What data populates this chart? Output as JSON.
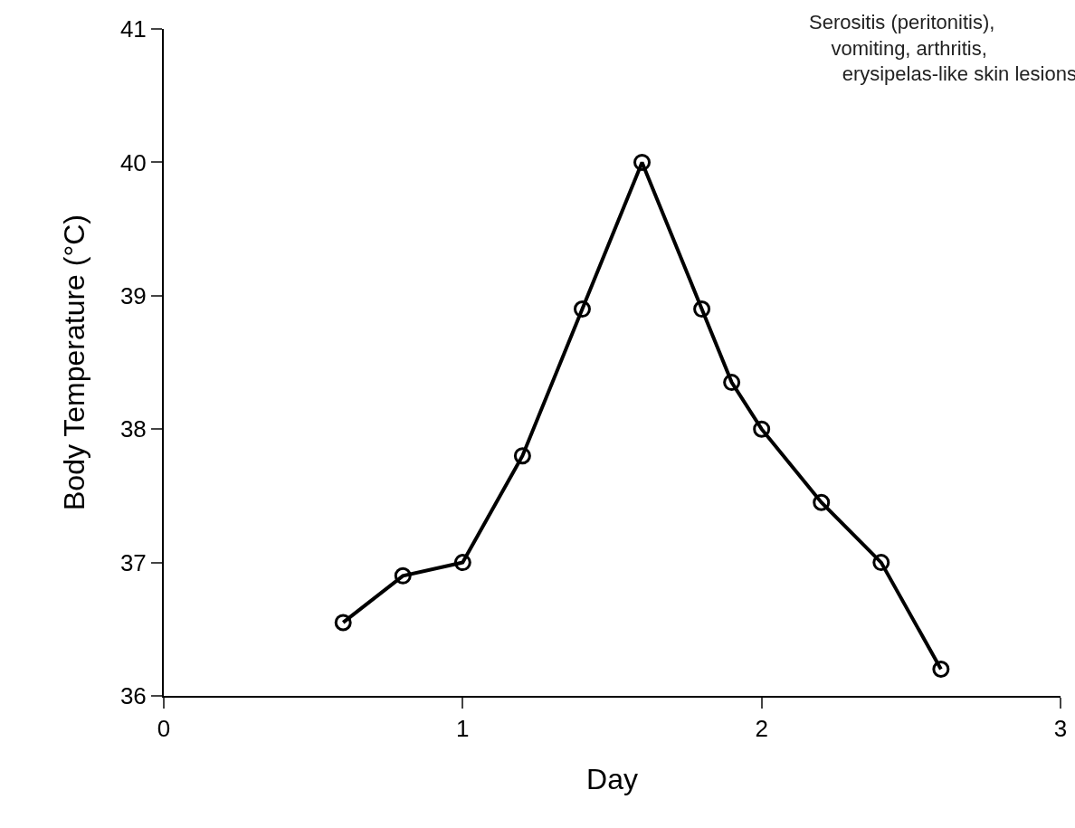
{
  "chart_data": {
    "type": "line",
    "xlabel": "Day",
    "ylabel": "Body Temperature (°C)",
    "x": [
      0.6,
      0.8,
      1.0,
      1.2,
      1.4,
      1.6,
      1.8,
      1.9,
      2.0,
      2.2,
      2.4,
      2.6
    ],
    "series": [
      {
        "color": "#000000",
        "values": [
          36.55,
          36.9,
          37.0,
          37.8,
          38.9,
          40.0,
          38.9,
          38.35,
          38.0,
          37.45,
          37.0,
          36.2
        ]
      }
    ],
    "xlim": [
      0,
      3
    ],
    "xticks": [
      0,
      1,
      2,
      3
    ],
    "ylim": [
      36,
      41
    ],
    "yticks": [
      36,
      37,
      38,
      39,
      40,
      41
    ],
    "grid": false,
    "legend": false,
    "marker": "circle",
    "line_style": "solid",
    "annotations": [
      "Serositis (peritonitis),\n    vomiting, arthritis,\n      erysipelas-like skin lesions"
    ]
  }
}
